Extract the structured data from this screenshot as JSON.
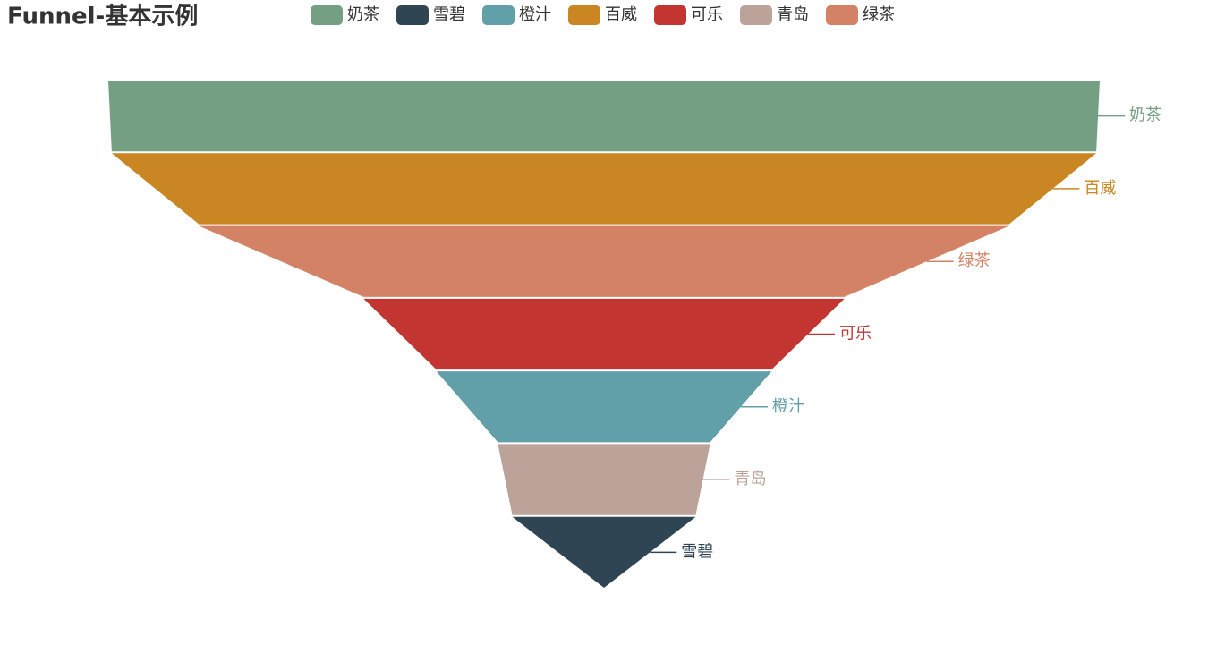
{
  "chart_data": {
    "type": "funnel",
    "title": "Funnel-基本示例",
    "categories": [
      "奶茶",
      "雪碧",
      "橙汁",
      "百威",
      "可乐",
      "青岛",
      "绿茶"
    ],
    "values": [
      100,
      18.5,
      33.8,
      99.3,
      48.5,
      21.4,
      81.7
    ],
    "colors": [
      "#749f83",
      "#2f4554",
      "#61a0a8",
      "#ca8622",
      "#c23531",
      "#bda29a",
      "#d48265"
    ],
    "legend_position": "top"
  }
}
